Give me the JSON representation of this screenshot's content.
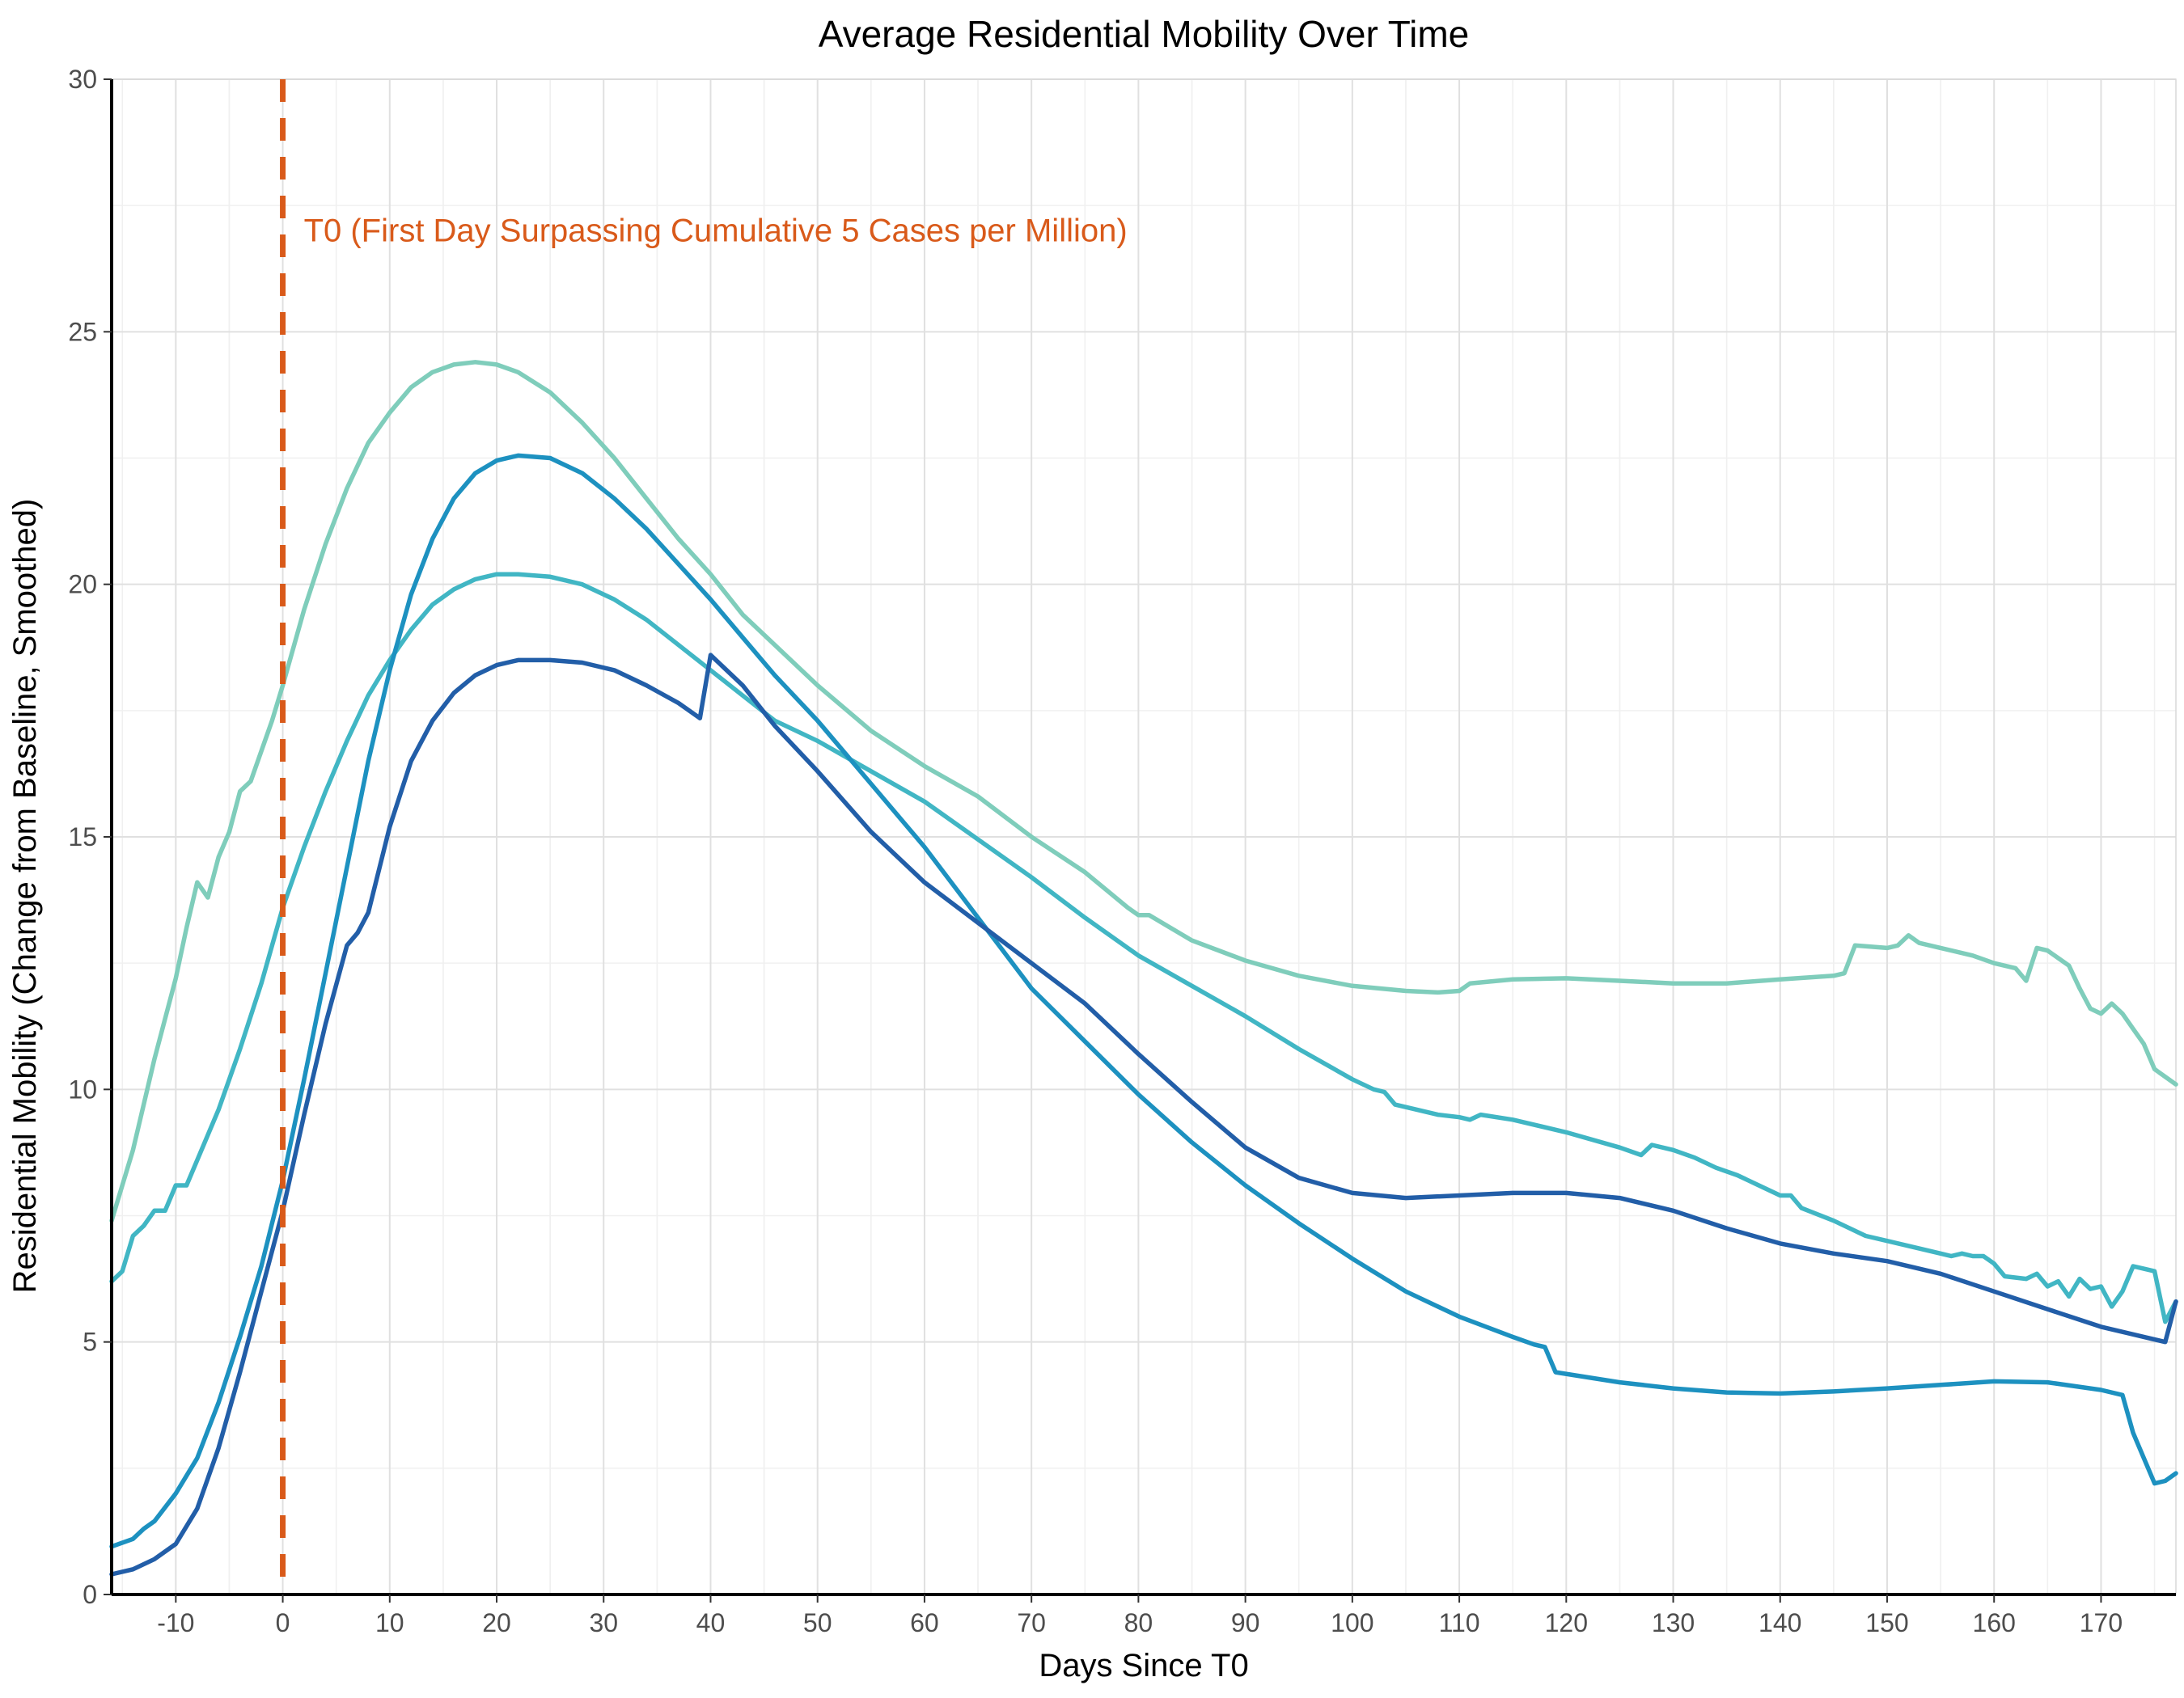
{
  "chart_data": {
    "type": "line",
    "title": "Average Residential Mobility Over Time",
    "xlabel": "Days Since T0",
    "ylabel": "Residential Mobility (Change from Baseline, Smoothed)",
    "xlim": [
      -16,
      177
    ],
    "ylim": [
      0,
      30
    ],
    "x_ticks": [
      -10,
      0,
      10,
      20,
      30,
      40,
      50,
      60,
      70,
      80,
      90,
      100,
      110,
      120,
      130,
      140,
      150,
      160,
      170
    ],
    "y_ticks": [
      0,
      5,
      10,
      15,
      20,
      25,
      30
    ],
    "grid": true,
    "legend": "none",
    "reference_line": {
      "x": 0,
      "color": "#d95a1a",
      "style": "dashed",
      "label": "T0 (First Day Surpassing Cumulative 5 Cases per Million)"
    },
    "series": [
      {
        "color": "#7fcdbb",
        "points": [
          [
            -16,
            7.4
          ],
          [
            -14,
            8.8
          ],
          [
            -12,
            10.6
          ],
          [
            -10,
            12.2
          ],
          [
            -9,
            13.2
          ],
          [
            -8,
            14.1
          ],
          [
            -7,
            13.8
          ],
          [
            -6,
            14.6
          ],
          [
            -5,
            15.1
          ],
          [
            -4,
            15.9
          ],
          [
            -3,
            16.1
          ],
          [
            -2,
            16.7
          ],
          [
            -1,
            17.3
          ],
          [
            0,
            18.0
          ],
          [
            2,
            19.5
          ],
          [
            4,
            20.8
          ],
          [
            6,
            21.9
          ],
          [
            8,
            22.8
          ],
          [
            10,
            23.4
          ],
          [
            12,
            23.9
          ],
          [
            14,
            24.2
          ],
          [
            16,
            24.35
          ],
          [
            18,
            24.4
          ],
          [
            20,
            24.35
          ],
          [
            22,
            24.2
          ],
          [
            25,
            23.8
          ],
          [
            28,
            23.2
          ],
          [
            31,
            22.5
          ],
          [
            34,
            21.7
          ],
          [
            37,
            20.9
          ],
          [
            40,
            20.2
          ],
          [
            43,
            19.4
          ],
          [
            46,
            18.8
          ],
          [
            50,
            18.0
          ],
          [
            55,
            17.1
          ],
          [
            60,
            16.4
          ],
          [
            65,
            15.8
          ],
          [
            70,
            15.0
          ],
          [
            75,
            14.3
          ],
          [
            79,
            13.6
          ],
          [
            80,
            13.45
          ],
          [
            81,
            13.45
          ],
          [
            85,
            12.95
          ],
          [
            90,
            12.55
          ],
          [
            95,
            12.25
          ],
          [
            100,
            12.05
          ],
          [
            105,
            11.95
          ],
          [
            108,
            11.92
          ],
          [
            110,
            11.95
          ],
          [
            111,
            12.1
          ],
          [
            115,
            12.18
          ],
          [
            120,
            12.2
          ],
          [
            125,
            12.15
          ],
          [
            130,
            12.1
          ],
          [
            135,
            12.1
          ],
          [
            140,
            12.18
          ],
          [
            145,
            12.25
          ],
          [
            146,
            12.3
          ],
          [
            147,
            12.85
          ],
          [
            150,
            12.8
          ],
          [
            151,
            12.85
          ],
          [
            152,
            13.05
          ],
          [
            153,
            12.9
          ],
          [
            155,
            12.8
          ],
          [
            158,
            12.65
          ],
          [
            160,
            12.5
          ],
          [
            162,
            12.4
          ],
          [
            163,
            12.15
          ],
          [
            164,
            12.8
          ],
          [
            165,
            12.75
          ],
          [
            167,
            12.45
          ],
          [
            168,
            12.0
          ],
          [
            169,
            11.6
          ],
          [
            170,
            11.5
          ],
          [
            171,
            11.7
          ],
          [
            172,
            11.5
          ],
          [
            173,
            11.2
          ],
          [
            174,
            10.9
          ],
          [
            175,
            10.4
          ],
          [
            177,
            10.1
          ]
        ]
      },
      {
        "color": "#41b6c4",
        "points": [
          [
            -16,
            6.2
          ],
          [
            -15,
            6.4
          ],
          [
            -14,
            7.1
          ],
          [
            -13,
            7.3
          ],
          [
            -12,
            7.6
          ],
          [
            -11,
            7.6
          ],
          [
            -10,
            8.1
          ],
          [
            -9,
            8.1
          ],
          [
            -8,
            8.6
          ],
          [
            -6,
            9.6
          ],
          [
            -4,
            10.8
          ],
          [
            -2,
            12.1
          ],
          [
            0,
            13.6
          ],
          [
            2,
            14.8
          ],
          [
            4,
            15.9
          ],
          [
            6,
            16.9
          ],
          [
            8,
            17.8
          ],
          [
            10,
            18.5
          ],
          [
            12,
            19.1
          ],
          [
            14,
            19.6
          ],
          [
            16,
            19.9
          ],
          [
            18,
            20.1
          ],
          [
            20,
            20.2
          ],
          [
            22,
            20.2
          ],
          [
            25,
            20.15
          ],
          [
            28,
            20.0
          ],
          [
            31,
            19.7
          ],
          [
            34,
            19.3
          ],
          [
            37,
            18.8
          ],
          [
            40,
            18.3
          ],
          [
            43,
            17.8
          ],
          [
            46,
            17.3
          ],
          [
            50,
            16.9
          ],
          [
            55,
            16.3
          ],
          [
            60,
            15.7
          ],
          [
            65,
            14.95
          ],
          [
            70,
            14.2
          ],
          [
            75,
            13.4
          ],
          [
            80,
            12.65
          ],
          [
            85,
            12.05
          ],
          [
            90,
            11.45
          ],
          [
            95,
            10.8
          ],
          [
            100,
            10.2
          ],
          [
            102,
            10.0
          ],
          [
            103,
            9.95
          ],
          [
            104,
            9.7
          ],
          [
            106,
            9.6
          ],
          [
            108,
            9.5
          ],
          [
            110,
            9.45
          ],
          [
            111,
            9.4
          ],
          [
            112,
            9.5
          ],
          [
            115,
            9.4
          ],
          [
            120,
            9.15
          ],
          [
            125,
            8.85
          ],
          [
            127,
            8.7
          ],
          [
            128,
            8.9
          ],
          [
            130,
            8.8
          ],
          [
            132,
            8.65
          ],
          [
            134,
            8.45
          ],
          [
            136,
            8.3
          ],
          [
            138,
            8.1
          ],
          [
            140,
            7.9
          ],
          [
            141,
            7.9
          ],
          [
            142,
            7.65
          ],
          [
            145,
            7.4
          ],
          [
            148,
            7.1
          ],
          [
            150,
            7.0
          ],
          [
            153,
            6.85
          ],
          [
            155,
            6.75
          ],
          [
            156,
            6.7
          ],
          [
            157,
            6.75
          ],
          [
            158,
            6.7
          ],
          [
            159,
            6.7
          ],
          [
            160,
            6.55
          ],
          [
            161,
            6.3
          ],
          [
            163,
            6.25
          ],
          [
            164,
            6.35
          ],
          [
            165,
            6.1
          ],
          [
            166,
            6.2
          ],
          [
            167,
            5.9
          ],
          [
            168,
            6.25
          ],
          [
            169,
            6.05
          ],
          [
            170,
            6.1
          ],
          [
            171,
            5.7
          ],
          [
            172,
            6.0
          ],
          [
            173,
            6.5
          ],
          [
            174,
            6.45
          ],
          [
            175,
            6.4
          ],
          [
            176,
            5.4
          ],
          [
            177,
            5.8
          ]
        ]
      },
      {
        "color": "#1d91c0",
        "points": [
          [
            -16,
            0.95
          ],
          [
            -14,
            1.1
          ],
          [
            -13,
            1.3
          ],
          [
            -12,
            1.45
          ],
          [
            -10,
            2.0
          ],
          [
            -8,
            2.7
          ],
          [
            -6,
            3.8
          ],
          [
            -4,
            5.1
          ],
          [
            -2,
            6.5
          ],
          [
            0,
            8.2
          ],
          [
            2,
            10.2
          ],
          [
            4,
            12.3
          ],
          [
            6,
            14.4
          ],
          [
            8,
            16.5
          ],
          [
            10,
            18.3
          ],
          [
            12,
            19.8
          ],
          [
            14,
            20.9
          ],
          [
            16,
            21.7
          ],
          [
            18,
            22.2
          ],
          [
            20,
            22.45
          ],
          [
            22,
            22.55
          ],
          [
            25,
            22.5
          ],
          [
            28,
            22.2
          ],
          [
            31,
            21.7
          ],
          [
            34,
            21.1
          ],
          [
            37,
            20.4
          ],
          [
            40,
            19.7
          ],
          [
            43,
            18.95
          ],
          [
            46,
            18.2
          ],
          [
            50,
            17.3
          ],
          [
            55,
            16.05
          ],
          [
            60,
            14.8
          ],
          [
            65,
            13.4
          ],
          [
            70,
            12.0
          ],
          [
            75,
            10.95
          ],
          [
            80,
            9.9
          ],
          [
            85,
            8.95
          ],
          [
            90,
            8.1
          ],
          [
            95,
            7.35
          ],
          [
            100,
            6.65
          ],
          [
            105,
            6.0
          ],
          [
            110,
            5.5
          ],
          [
            115,
            5.1
          ],
          [
            117,
            4.95
          ],
          [
            118,
            4.9
          ],
          [
            119,
            4.4
          ],
          [
            122,
            4.3
          ],
          [
            125,
            4.2
          ],
          [
            130,
            4.08
          ],
          [
            135,
            4.0
          ],
          [
            140,
            3.98
          ],
          [
            145,
            4.02
          ],
          [
            150,
            4.08
          ],
          [
            155,
            4.15
          ],
          [
            160,
            4.22
          ],
          [
            165,
            4.2
          ],
          [
            170,
            4.05
          ],
          [
            172,
            3.95
          ],
          [
            173,
            3.2
          ],
          [
            175,
            2.2
          ],
          [
            176,
            2.25
          ],
          [
            177,
            2.4
          ]
        ]
      },
      {
        "color": "#225ea8",
        "points": [
          [
            -16,
            0.4
          ],
          [
            -14,
            0.5
          ],
          [
            -12,
            0.7
          ],
          [
            -10,
            1.0
          ],
          [
            -8,
            1.7
          ],
          [
            -6,
            2.9
          ],
          [
            -4,
            4.4
          ],
          [
            -2,
            6.0
          ],
          [
            0,
            7.6
          ],
          [
            2,
            9.5
          ],
          [
            4,
            11.3
          ],
          [
            6,
            12.85
          ],
          [
            7,
            13.1
          ],
          [
            8,
            13.5
          ],
          [
            10,
            15.2
          ],
          [
            12,
            16.5
          ],
          [
            14,
            17.3
          ],
          [
            16,
            17.85
          ],
          [
            18,
            18.2
          ],
          [
            20,
            18.4
          ],
          [
            22,
            18.5
          ],
          [
            25,
            18.5
          ],
          [
            28,
            18.45
          ],
          [
            31,
            18.3
          ],
          [
            34,
            18.0
          ],
          [
            37,
            17.65
          ],
          [
            39,
            17.35
          ],
          [
            40,
            18.6
          ],
          [
            43,
            18.0
          ],
          [
            46,
            17.2
          ],
          [
            50,
            16.3
          ],
          [
            55,
            15.1
          ],
          [
            60,
            14.1
          ],
          [
            65,
            13.3
          ],
          [
            70,
            12.5
          ],
          [
            75,
            11.7
          ],
          [
            80,
            10.7
          ],
          [
            85,
            9.75
          ],
          [
            90,
            8.85
          ],
          [
            95,
            8.25
          ],
          [
            100,
            7.95
          ],
          [
            105,
            7.85
          ],
          [
            110,
            7.9
          ],
          [
            115,
            7.95
          ],
          [
            120,
            7.95
          ],
          [
            125,
            7.85
          ],
          [
            130,
            7.6
          ],
          [
            135,
            7.25
          ],
          [
            140,
            6.95
          ],
          [
            145,
            6.75
          ],
          [
            150,
            6.6
          ],
          [
            155,
            6.35
          ],
          [
            160,
            6.0
          ],
          [
            165,
            5.65
          ],
          [
            170,
            5.3
          ],
          [
            176,
            5.0
          ],
          [
            177,
            5.8
          ]
        ]
      }
    ]
  }
}
